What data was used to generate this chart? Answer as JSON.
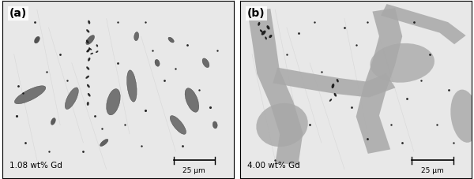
{
  "fig_width": 6.0,
  "fig_height": 2.27,
  "dpi": 100,
  "panel_a": {
    "label": "(a)",
    "caption": "1.08 wt% Gd",
    "scale_bar_text": "25 μm",
    "bg_color": "#e8e8e8"
  },
  "panel_b": {
    "label": "(b)",
    "caption": "4.00 wt% Gd",
    "scale_bar_text": "25 μm",
    "bg_color": "#e8e8e8"
  },
  "dark_color": "#111111",
  "gray_inclusion_color": "#7a7a7a",
  "network_color": "#a8a8a8",
  "border_color": "#000000",
  "label_fontsize": 10,
  "caption_fontsize": 7.5,
  "scalebar_fontsize": 6.5
}
